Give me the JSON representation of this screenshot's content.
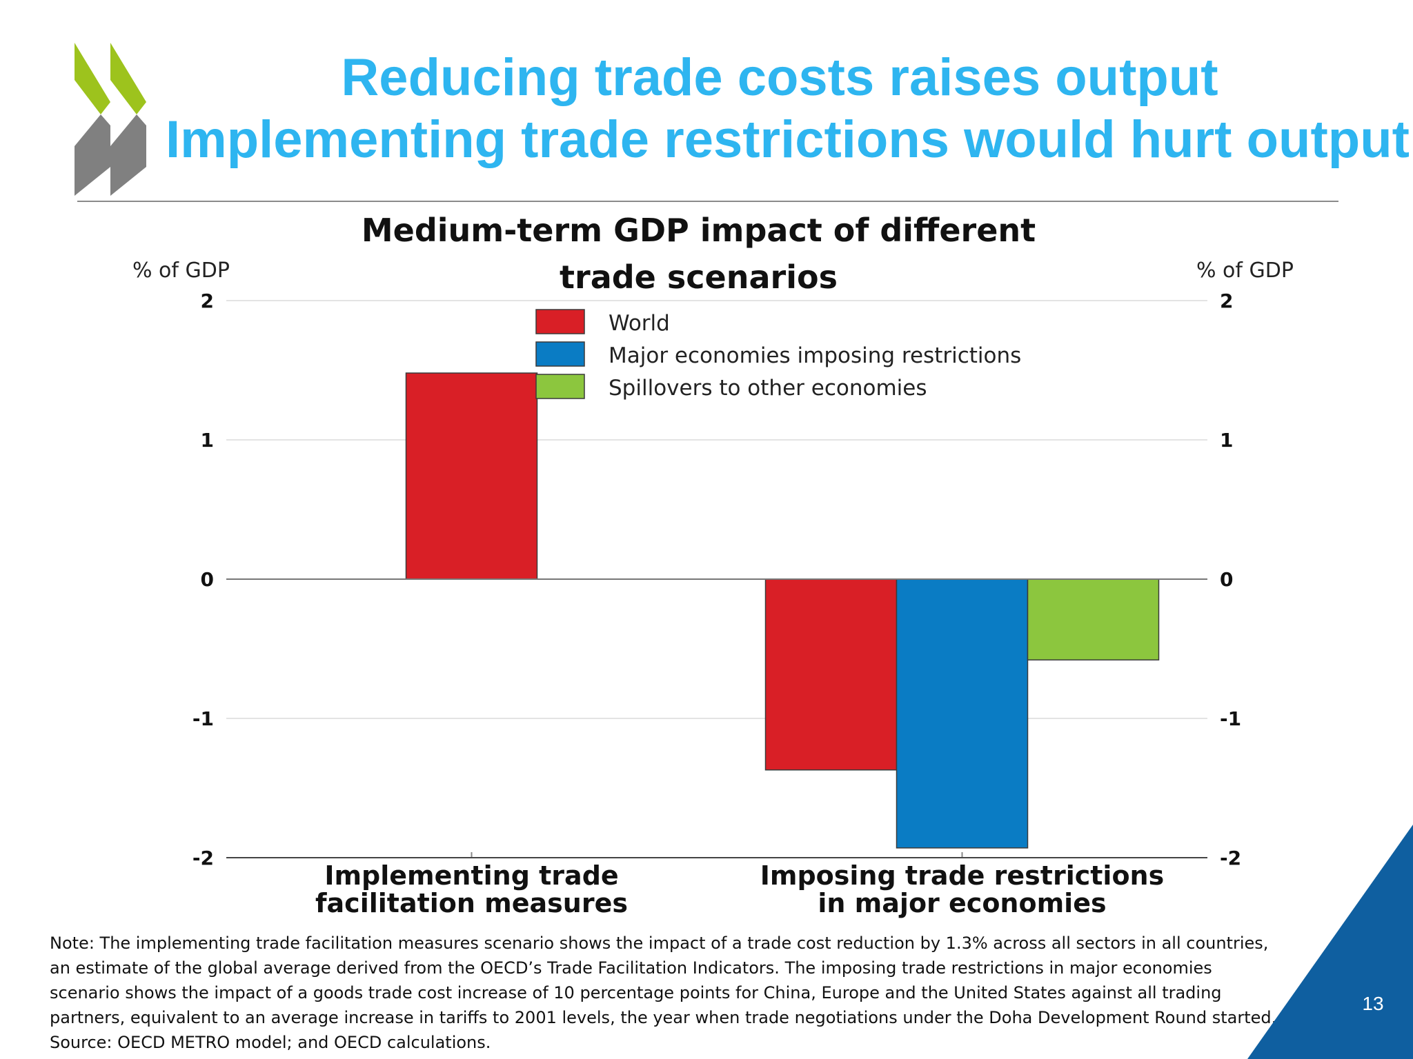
{
  "slide": {
    "title_lines": [
      "Reducing trade costs raises output",
      "Implementing trade restrictions would hurt output"
    ],
    "page_number": "13",
    "note_lines": [
      "Note: The implementing trade facilitation measures scenario shows the impact of a trade cost reduction by 1.3% across all sectors in all countries,",
      "an estimate of the global average derived from the OECD’s Trade Facilitation Indicators. The imposing trade restrictions in major economies",
      "scenario shows the impact of a goods trade cost increase of 10 percentage points for China, Europe and the United States against all trading",
      "partners, equivalent to an average increase in tariffs to 2001 levels, the year when trade negotiations under the Doha Development Round started.",
      "Source: OECD METRO model; and OECD calculations."
    ],
    "colors": {
      "title": "#2eb5f0",
      "logo_green": "#9dc31d",
      "logo_gray": "#808080",
      "corner_blue": "#0f5fa0"
    }
  },
  "chart_data": {
    "type": "bar",
    "title_lines": [
      "Medium-term GDP impact of different",
      "trade scenarios"
    ],
    "ylabel_left": "% of GDP",
    "ylabel_right": "% of GDP",
    "ylim": [
      -2,
      2
    ],
    "yticks": [
      2,
      1,
      0,
      -1,
      -2
    ],
    "categories": [
      [
        "Implementing trade",
        "facilitation measures"
      ],
      [
        "Imposing trade restrictions",
        "in major economies"
      ]
    ],
    "series": [
      {
        "name": "World",
        "color": "#d91f26",
        "values": [
          1.48,
          -1.37
        ]
      },
      {
        "name": "Major economies imposing restrictions",
        "color": "#0a7cc4",
        "values": [
          null,
          -1.93
        ]
      },
      {
        "name": "Spillovers to other economies",
        "color": "#8cc63e",
        "values": [
          null,
          -0.58
        ]
      }
    ],
    "legend_position": "top-center",
    "grid": true
  }
}
